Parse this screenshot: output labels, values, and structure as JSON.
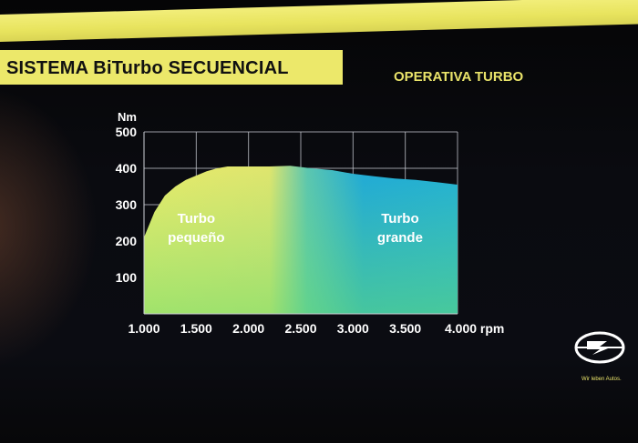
{
  "slide": {
    "title": "SISTEMA BiTurbo SECUENCIAL",
    "subtitle": "OPERATIVA TURBO",
    "slogan": "Wir leben Autos."
  },
  "colors": {
    "accent": "#ece86a",
    "yellow_area": "#e8ea6a",
    "cyan_area": "#1fa9d8",
    "text_light": "#ffffff"
  },
  "chart_data": {
    "type": "area",
    "title": "",
    "ylabel": "Nm",
    "xlabel": "rpm",
    "ylim": [
      0,
      500
    ],
    "xlim": [
      1000,
      4000
    ],
    "yticks": [
      100,
      200,
      300,
      400,
      500
    ],
    "ytick_labels": [
      "100",
      "200",
      "300",
      "400",
      "500"
    ],
    "xticks": [
      1000,
      1500,
      2000,
      2500,
      3000,
      3500,
      4000
    ],
    "xtick_labels": [
      "1.000",
      "1.500",
      "2.000",
      "2.500",
      "3.000",
      "3.500",
      "4.000 rpm"
    ],
    "grid": true,
    "x": [
      1000,
      1100,
      1200,
      1300,
      1400,
      1500,
      1600,
      1700,
      1800,
      2000,
      2200,
      2400,
      2600,
      2800,
      3000,
      3200,
      3400,
      3600,
      3800,
      4000
    ],
    "torque": [
      210,
      280,
      325,
      350,
      368,
      380,
      392,
      400,
      405,
      405,
      405,
      407,
      400,
      395,
      385,
      378,
      372,
      368,
      362,
      355
    ],
    "annotations": [
      {
        "text": "Turbo\npequeño",
        "x": 1500,
        "y": 230,
        "color": "#ffffff"
      },
      {
        "text": "Turbo\ngrande",
        "x": 3450,
        "y": 230,
        "color": "#ffffff"
      }
    ]
  }
}
